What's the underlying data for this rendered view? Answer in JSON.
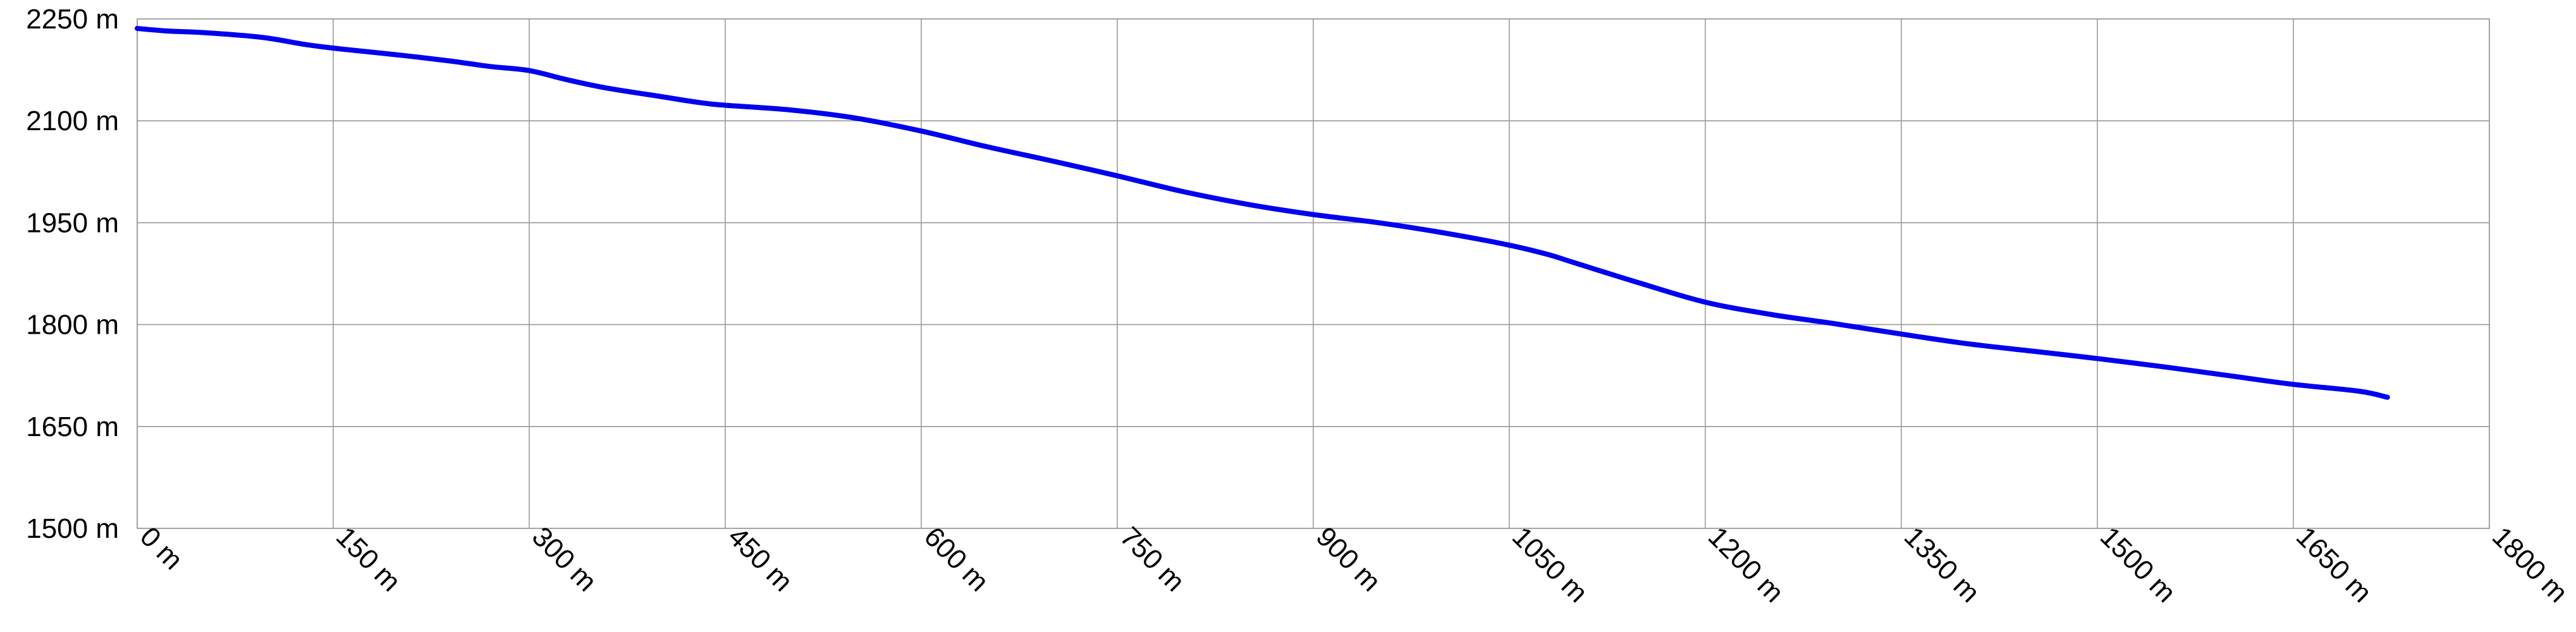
{
  "chart_data": {
    "type": "line",
    "title": "",
    "xlabel": "",
    "ylabel": "",
    "xlim": [
      0,
      1800
    ],
    "ylim": [
      1500,
      2250
    ],
    "x_ticks": [
      0,
      150,
      300,
      450,
      600,
      750,
      900,
      1050,
      1200,
      1350,
      1500,
      1650,
      1800
    ],
    "y_ticks": [
      1500,
      1650,
      1800,
      1950,
      2100,
      2250
    ],
    "x_tick_labels": [
      "0 m",
      "150 m",
      "300 m",
      "450 m",
      "600 m",
      "750 m",
      "900 m",
      "1050 m",
      "1200 m",
      "1350 m",
      "1500 m",
      "1650 m",
      "1800 m"
    ],
    "y_tick_labels": [
      "1500 m",
      "1650 m",
      "1800 m",
      "1950 m",
      "2100 m",
      "2250 m"
    ],
    "grid": true,
    "line_color": "#0000ee",
    "series": [
      {
        "x": [
          0,
          25,
          50,
          95,
          130,
          160,
          200,
          240,
          270,
          300,
          330,
          360,
          400,
          430,
          450,
          500,
          550,
          600,
          650,
          700,
          750,
          800,
          850,
          900,
          950,
          1000,
          1050,
          1080,
          1100,
          1150,
          1200,
          1250,
          1300,
          1350,
          1400,
          1450,
          1500,
          1550,
          1600,
          1650,
          1700,
          1722
        ],
        "y": [
          2236,
          2232,
          2230,
          2223,
          2212,
          2205,
          2197,
          2188,
          2180,
          2174,
          2160,
          2148,
          2136,
          2127,
          2123,
          2116,
          2104,
          2085,
          2062,
          2041,
          2019,
          1996,
          1977,
          1962,
          1950,
          1935,
          1917,
          1903,
          1891,
          1861,
          1833,
          1815,
          1801,
          1786,
          1772,
          1761,
          1750,
          1738,
          1725,
          1712,
          1702,
          1693
        ]
      }
    ]
  }
}
